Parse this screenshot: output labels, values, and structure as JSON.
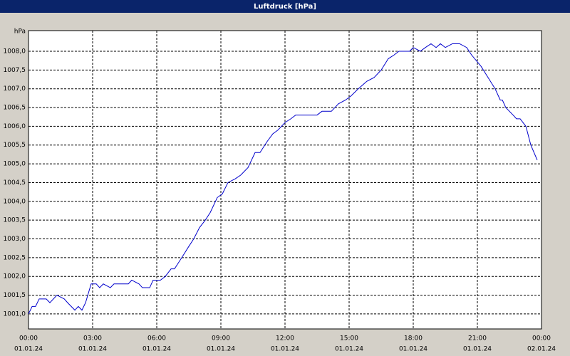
{
  "chart_data": {
    "type": "line",
    "title": "Luftdruck [hPa]",
    "y_label": "hPa",
    "color": "#0000cc",
    "grid": true,
    "xlim": [
      0,
      24
    ],
    "ylim": [
      1000.6,
      1008.55
    ],
    "xticks": [
      {
        "value": 0,
        "label": "00:00"
      },
      {
        "value": 3,
        "label": "03:00"
      },
      {
        "value": 6,
        "label": "06:00"
      },
      {
        "value": 9,
        "label": "09:00"
      },
      {
        "value": 12,
        "label": "12:00"
      },
      {
        "value": 15,
        "label": "15:00"
      },
      {
        "value": 18,
        "label": "18:00"
      },
      {
        "value": 21,
        "label": "21:00"
      },
      {
        "value": 24,
        "label": "00:00"
      }
    ],
    "xtick_dates": [
      "01.01.24",
      "01.01.24",
      "01.01.24",
      "01.01.24",
      "01.01.24",
      "01.01.24",
      "01.01.24",
      "01.01.24",
      "02.01.24"
    ],
    "yticks": [
      {
        "value": 1001,
        "label": "1001,0"
      },
      {
        "value": 1001.5,
        "label": "1001,5"
      },
      {
        "value": 1002,
        "label": "1002,0"
      },
      {
        "value": 1002.5,
        "label": "1002,5"
      },
      {
        "value": 1003,
        "label": "1003,0"
      },
      {
        "value": 1003.5,
        "label": "1003,5"
      },
      {
        "value": 1004,
        "label": "1004,0"
      },
      {
        "value": 1004.5,
        "label": "1004,5"
      },
      {
        "value": 1005,
        "label": "1005,0"
      },
      {
        "value": 1005.5,
        "label": "1005,5"
      },
      {
        "value": 1006,
        "label": "1006,0"
      },
      {
        "value": 1006.5,
        "label": "1006,5"
      },
      {
        "value": 1007,
        "label": "1007,0"
      },
      {
        "value": 1007.5,
        "label": "1007,5"
      },
      {
        "value": 1008,
        "label": "1008,0"
      }
    ],
    "x": [
      0,
      0.17,
      0.33,
      0.5,
      0.83,
      1,
      1.33,
      1.67,
      1.83,
      2.17,
      2.33,
      2.5,
      2.67,
      2.93,
      3.17,
      3.33,
      3.5,
      3.83,
      4,
      4.67,
      4.83,
      5.17,
      5.33,
      5.67,
      5.83,
      6.17,
      6.4,
      6.67,
      6.83,
      7.17,
      7.5,
      7.73,
      8,
      8.27,
      8.5,
      8.83,
      9.07,
      9.33,
      9.67,
      9.93,
      10.27,
      10.6,
      10.83,
      11.17,
      11.43,
      11.67,
      12,
      12.27,
      12.5,
      13.5,
      13.73,
      14.17,
      14.5,
      14.83,
      15.07,
      15.43,
      15.83,
      16.17,
      16.5,
      16.83,
      17.1,
      17.33,
      17.83,
      18,
      18.33,
      18.57,
      18.83,
      19.07,
      19.27,
      19.5,
      19.83,
      20.17,
      20.5,
      20.73,
      21.17,
      21.5,
      21.83,
      22.07,
      22.17,
      22.33,
      22.67,
      22.83,
      23,
      23.27,
      23.5,
      23.8
    ],
    "values": [
      1001.0,
      1001.2,
      1001.2,
      1001.4,
      1001.4,
      1001.3,
      1001.5,
      1001.4,
      1001.3,
      1001.1,
      1001.2,
      1001.1,
      1001.3,
      1001.8,
      1001.8,
      1001.7,
      1001.8,
      1001.7,
      1001.8,
      1001.8,
      1001.9,
      1001.8,
      1001.7,
      1001.7,
      1001.9,
      1001.9,
      1002.0,
      1002.2,
      1002.2,
      1002.5,
      1002.8,
      1003.0,
      1003.3,
      1003.5,
      1003.7,
      1004.1,
      1004.2,
      1004.5,
      1004.6,
      1004.7,
      1004.9,
      1005.3,
      1005.3,
      1005.6,
      1005.8,
      1005.9,
      1006.1,
      1006.2,
      1006.3,
      1006.3,
      1006.4,
      1006.4,
      1006.6,
      1006.7,
      1006.8,
      1007.0,
      1007.2,
      1007.3,
      1007.5,
      1007.8,
      1007.9,
      1008.0,
      1008.0,
      1008.1,
      1008.0,
      1008.1,
      1008.2,
      1008.1,
      1008.2,
      1008.1,
      1008.2,
      1008.2,
      1008.1,
      1007.9,
      1007.6,
      1007.3,
      1007.0,
      1006.7,
      1006.7,
      1006.5,
      1006.3,
      1006.2,
      1006.2,
      1006.0,
      1005.5,
      1005.1
    ]
  }
}
